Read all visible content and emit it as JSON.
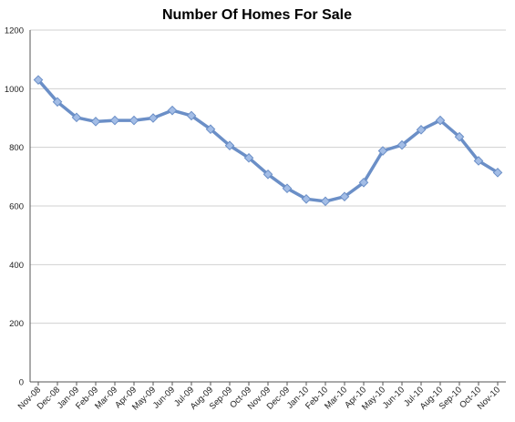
{
  "chart_data": {
    "type": "line",
    "title": "Number Of Homes For Sale",
    "xlabel": "",
    "ylabel": "",
    "ylim": [
      0,
      1200
    ],
    "yticks": [
      0,
      200,
      400,
      600,
      800,
      1000,
      1200
    ],
    "grid": true,
    "legend": "none",
    "categories": [
      "Nov-08",
      "Dec-08",
      "Jan-09",
      "Feb-09",
      "Mar-09",
      "Apr-09",
      "May-09",
      "Jun-09",
      "Jul-09",
      "Aug-09",
      "Sep-09",
      "Oct-09",
      "Nov-09",
      "Dec-09",
      "Jan-10",
      "Feb-10",
      "Mar-10",
      "Apr-10",
      "May-10",
      "Jun-10",
      "Jul-10",
      "Aug-10",
      "Sep-10",
      "Oct-10",
      "Nov-10"
    ],
    "series": [
      {
        "values": [
          1030,
          955,
          902,
          888,
          892,
          892,
          900,
          926,
          908,
          862,
          806,
          764,
          708,
          660,
          624,
          616,
          632,
          680,
          788,
          808,
          860,
          892,
          836,
          754,
          714
        ],
        "color": "#6b8fc7",
        "marker_color": "#a3bde6"
      }
    ]
  }
}
